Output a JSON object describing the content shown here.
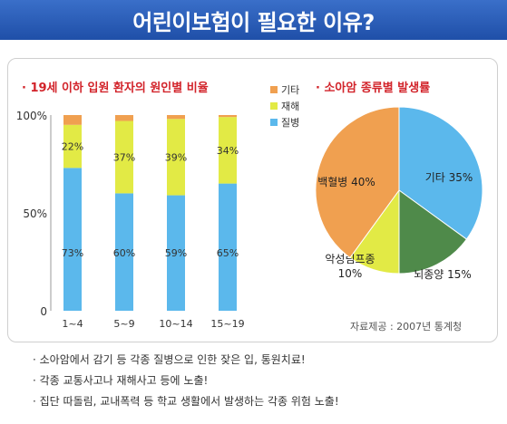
{
  "header": {
    "title": "어린이보험이 필요한 이유?"
  },
  "bar_chart": {
    "title": "· 19세 이하 입원 환자의 원인별 비율"
  },
  "pie_chart": {
    "title": "· 소아암 종류별 발생률"
  },
  "source": "자료제공 : 2007년 통계청",
  "notes": [
    "· 소아암에서 감기 등 각종 질병으로 인한 잦은 입, 통원치료!",
    "· 각종 교통사고나 재해사고 등에 노출!",
    "· 집단 따돌림, 교내폭력 등 학교 생활에서 발생하는 각종 위험 노출!"
  ],
  "colors": {
    "disease": "#5bb8ec",
    "accident": "#e2ea45",
    "other": "#f0a050",
    "pie_green": "#4f8a4a",
    "title_red": "#d2232a"
  },
  "chart_data": [
    {
      "type": "bar",
      "stacked": true,
      "title": "· 19세 이하 입원 환자의 원인별 비율",
      "categories": [
        "1~4",
        "5~9",
        "10~14",
        "15~19"
      ],
      "series": [
        {
          "name": "질병",
          "values": [
            73,
            60,
            59,
            65
          ],
          "labels": [
            "73%",
            "60%",
            "59%",
            "65%"
          ]
        },
        {
          "name": "재해",
          "values": [
            22,
            37,
            39,
            34
          ],
          "labels": [
            "22%",
            "37%",
            "39%",
            "34%"
          ]
        },
        {
          "name": "기타",
          "values": [
            5,
            3,
            2,
            1
          ]
        }
      ],
      "yticks": [
        "100%",
        "50%",
        "0"
      ],
      "ylim": [
        0,
        100
      ],
      "legend_order": [
        "기타",
        "재해",
        "질병"
      ],
      "legend_position": "top-right"
    },
    {
      "type": "pie",
      "title": "· 소아암 종류별 발생률",
      "slices": [
        {
          "label": "기타",
          "value": 35,
          "display": "기타 35%"
        },
        {
          "label": "뇌종양",
          "value": 15,
          "display": "뇌종양 15%"
        },
        {
          "label": "악성림프종",
          "value": 10,
          "display": "악성림프종 10%"
        },
        {
          "label": "백혈병",
          "value": 40,
          "display": "백혈병 40%"
        }
      ]
    }
  ]
}
